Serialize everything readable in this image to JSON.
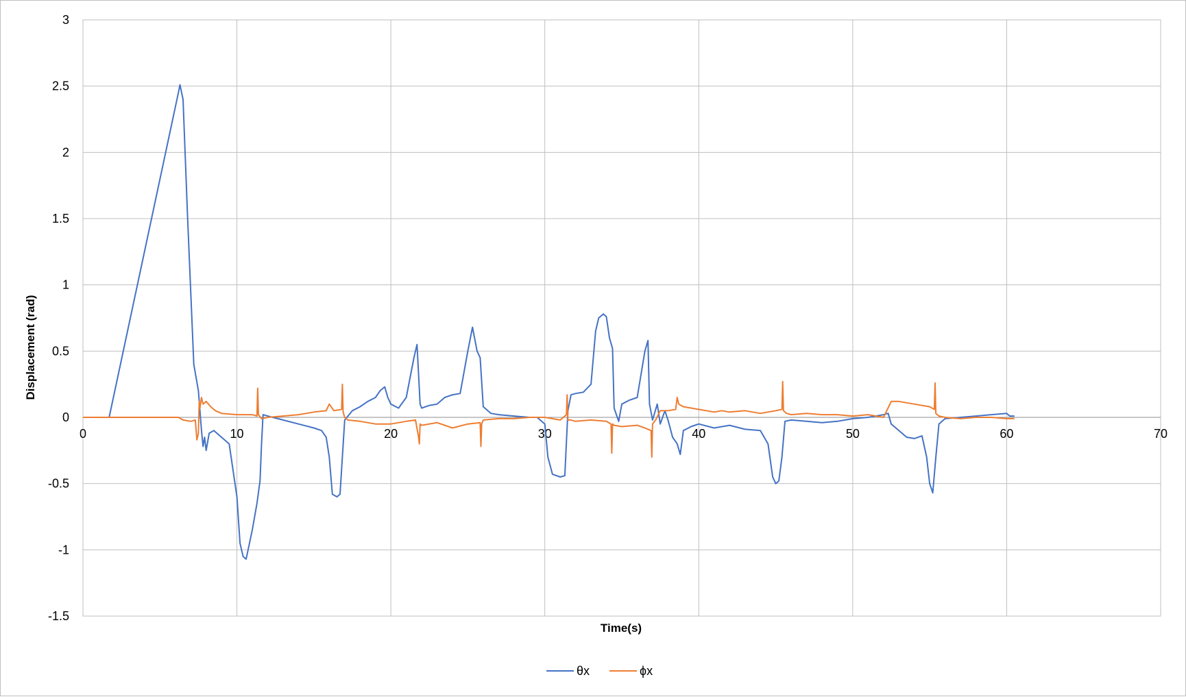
{
  "chart_data": {
    "type": "line",
    "title": "",
    "xlabel": "Time(s)",
    "ylabel": "Displacement (rad)",
    "xlim": [
      0,
      70
    ],
    "ylim": [
      -1.5,
      3
    ],
    "x_ticks": [
      0,
      10,
      20,
      30,
      40,
      50,
      60,
      70
    ],
    "y_ticks": [
      -1.5,
      -1,
      -0.5,
      0,
      0.5,
      1,
      1.5,
      2,
      2.5,
      3
    ],
    "grid": true,
    "legend_position": "bottom",
    "colors": {
      "theta": "#4472c4",
      "phi": "#ed7d31",
      "grid": "#bfbfbf"
    },
    "series": [
      {
        "name": "θx",
        "color": "#4472c4",
        "x": [
          0,
          1.7,
          6.2,
          6.3,
          6.5,
          6.8,
          7.2,
          7.5,
          7.7,
          7.8,
          7.9,
          8.0,
          8.2,
          8.5,
          9.0,
          9.5,
          10.0,
          10.2,
          10.4,
          10.6,
          11.0,
          11.3,
          11.5,
          11.6,
          11.7,
          12.0,
          13.0,
          14.0,
          15.0,
          15.5,
          15.8,
          16.0,
          16.2,
          16.5,
          16.7,
          17.0,
          17.5,
          18.0,
          18.5,
          19.0,
          19.3,
          19.6,
          19.8,
          20.0,
          20.5,
          21.0,
          21.5,
          21.7,
          21.9,
          22.0,
          22.5,
          23.0,
          23.5,
          24.0,
          24.5,
          25.0,
          25.3,
          25.6,
          25.8,
          26.0,
          26.5,
          27.0,
          28.0,
          29.0,
          29.5,
          30.0,
          30.2,
          30.5,
          31.0,
          31.3,
          31.5,
          31.7,
          32.0,
          32.5,
          33.0,
          33.3,
          33.5,
          33.8,
          34.0,
          34.2,
          34.4,
          34.5,
          34.8,
          35.0,
          35.5,
          36.0,
          36.5,
          36.7,
          36.8,
          37.0,
          37.3,
          37.5,
          37.8,
          38.0,
          38.3,
          38.6,
          38.8,
          39.0,
          39.5,
          40.0,
          41.0,
          42.0,
          43.0,
          44.0,
          44.5,
          44.8,
          45.0,
          45.2,
          45.4,
          45.6,
          46.0,
          47.0,
          48.0,
          49.0,
          50.0,
          51.0,
          52.0,
          52.3,
          52.5,
          53.0,
          53.5,
          54.0,
          54.5,
          54.8,
          55.0,
          55.2,
          55.4,
          55.6,
          56.0,
          57.0,
          58.0,
          59.0,
          60.0,
          60.2,
          60.5
        ],
        "y": [
          0,
          0,
          2.45,
          2.51,
          2.4,
          1.5,
          0.4,
          0.2,
          -0.1,
          -0.22,
          -0.15,
          -0.25,
          -0.12,
          -0.1,
          -0.15,
          -0.2,
          -0.6,
          -0.95,
          -1.05,
          -1.07,
          -0.85,
          -0.65,
          -0.48,
          -0.2,
          0.02,
          0.01,
          -0.02,
          -0.05,
          -0.08,
          -0.1,
          -0.15,
          -0.3,
          -0.58,
          -0.6,
          -0.58,
          -0.02,
          0.05,
          0.08,
          0.12,
          0.15,
          0.2,
          0.23,
          0.15,
          0.1,
          0.07,
          0.15,
          0.45,
          0.55,
          0.1,
          0.07,
          0.09,
          0.1,
          0.15,
          0.17,
          0.18,
          0.5,
          0.68,
          0.5,
          0.45,
          0.08,
          0.03,
          0.02,
          0.01,
          0,
          0,
          -0.05,
          -0.3,
          -0.43,
          -0.45,
          -0.44,
          0.05,
          0.17,
          0.18,
          0.19,
          0.25,
          0.65,
          0.75,
          0.78,
          0.76,
          0.6,
          0.52,
          0.07,
          -0.03,
          0.1,
          0.13,
          0.15,
          0.5,
          0.58,
          0.1,
          -0.02,
          0.1,
          -0.05,
          0.05,
          -0.02,
          -0.15,
          -0.2,
          -0.28,
          -0.1,
          -0.07,
          -0.05,
          -0.08,
          -0.06,
          -0.09,
          -0.1,
          -0.2,
          -0.45,
          -0.5,
          -0.48,
          -0.3,
          -0.03,
          -0.02,
          -0.03,
          -0.04,
          -0.03,
          -0.01,
          0,
          0.02,
          0.03,
          -0.05,
          -0.1,
          -0.15,
          -0.16,
          -0.14,
          -0.3,
          -0.5,
          -0.57,
          -0.3,
          -0.05,
          -0.01,
          0,
          0.01,
          0.02,
          0.03,
          0.01,
          0.01
        ]
      },
      {
        "name": "ϕx",
        "color": "#ed7d31",
        "x": [
          0,
          1.7,
          6.2,
          6.5,
          7.0,
          7.3,
          7.4,
          7.5,
          7.55,
          7.6,
          7.7,
          7.8,
          8.0,
          8.3,
          8.6,
          9.0,
          10.0,
          11.0,
          11.3,
          11.35,
          11.4,
          11.6,
          12.0,
          13.0,
          14.0,
          15.0,
          15.8,
          16.0,
          16.3,
          16.8,
          16.85,
          16.9,
          17.0,
          17.2,
          18.0,
          19.0,
          20.0,
          21.0,
          21.6,
          21.8,
          21.85,
          21.9,
          22.0,
          23.0,
          24.0,
          25.0,
          25.8,
          25.85,
          25.9,
          26.0,
          27.0,
          28.0,
          29.0,
          30.0,
          31.0,
          31.4,
          31.45,
          31.5,
          31.7,
          32.0,
          33.0,
          34.0,
          34.3,
          34.35,
          34.4,
          34.5,
          35.0,
          36.0,
          36.5,
          36.9,
          36.95,
          37.0,
          37.2,
          37.5,
          38.0,
          38.5,
          38.6,
          38.7,
          39.0,
          40.0,
          41.0,
          41.5,
          42.0,
          43.0,
          44.0,
          45.0,
          45.4,
          45.45,
          45.5,
          45.7,
          46.0,
          47.0,
          48.0,
          49.0,
          50.0,
          51.0,
          52.0,
          52.5,
          53.0,
          54.0,
          55.0,
          55.3,
          55.35,
          55.4,
          55.6,
          56.0,
          57.0,
          58.0,
          59.0,
          60.0,
          60.5
        ],
        "y": [
          0,
          0,
          0,
          -0.02,
          -0.03,
          -0.02,
          -0.17,
          -0.12,
          0.12,
          0.07,
          0.15,
          0.1,
          0.12,
          0.08,
          0.05,
          0.03,
          0.02,
          0.02,
          0.01,
          0.22,
          0.02,
          -0.01,
          0,
          0.01,
          0.02,
          0.04,
          0.05,
          0.1,
          0.05,
          0.06,
          0.25,
          0.04,
          0,
          -0.02,
          -0.03,
          -0.05,
          -0.05,
          -0.03,
          -0.02,
          -0.15,
          -0.2,
          -0.05,
          -0.06,
          -0.04,
          -0.08,
          -0.05,
          -0.04,
          -0.22,
          -0.05,
          -0.02,
          -0.01,
          -0.01,
          0,
          0,
          -0.02,
          0.02,
          0.17,
          -0.02,
          -0.02,
          -0.03,
          -0.02,
          -0.03,
          -0.05,
          -0.27,
          -0.05,
          -0.06,
          -0.07,
          -0.06,
          -0.08,
          -0.1,
          -0.3,
          -0.05,
          -0.02,
          0.05,
          0.05,
          0.06,
          0.15,
          0.1,
          0.08,
          0.06,
          0.04,
          0.05,
          0.04,
          0.05,
          0.03,
          0.05,
          0.06,
          0.27,
          0.05,
          0.03,
          0.02,
          0.03,
          0.02,
          0.02,
          0.01,
          0.02,
          0,
          0.12,
          0.12,
          0.1,
          0.08,
          0.06,
          0.26,
          0.03,
          0.01,
          0,
          -0.01,
          0,
          0,
          -0.01,
          -0.01
        ]
      }
    ]
  }
}
